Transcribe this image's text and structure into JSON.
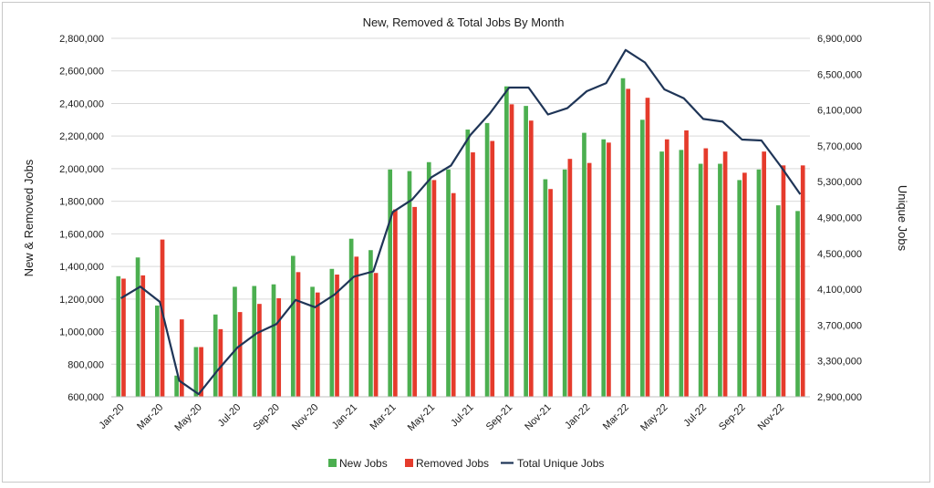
{
  "chart_data": {
    "type": "bar",
    "title": "New, Removed & Total Jobs By Month",
    "ylabel": "New & Removed Jobs",
    "y2label": "Unique Jobs",
    "ylim": [
      600000,
      2800000
    ],
    "y2lim": [
      2900000,
      6900000
    ],
    "yticks": [
      "2,800,000",
      "2,600,000",
      "2,400,000",
      "2,200,000",
      "2,000,000",
      "1,800,000",
      "1,600,000",
      "1,400,000",
      "1,200,000",
      "1,000,000",
      "800,000",
      "600,000"
    ],
    "y2ticks": [
      "6,900,000",
      "6,500,000",
      "6,100,000",
      "5,700,000",
      "5,300,000",
      "4,900,000",
      "4,500,000",
      "4,100,000",
      "3,700,000",
      "3,300,000",
      "2,900,000"
    ],
    "categories": [
      "Jan-20",
      "Feb-20",
      "Mar-20",
      "Apr-20",
      "May-20",
      "Jun-20",
      "Jul-20",
      "Aug-20",
      "Sep-20",
      "Oct-20",
      "Nov-20",
      "Dec-20",
      "Jan-21",
      "Feb-21",
      "Mar-21",
      "Apr-21",
      "May-21",
      "Jun-21",
      "Jul-21",
      "Aug-21",
      "Sep-21",
      "Oct-21",
      "Nov-21",
      "Dec-21",
      "Jan-22",
      "Feb-22",
      "Mar-22",
      "Apr-22",
      "May-22",
      "Jun-22",
      "Jul-22",
      "Aug-22",
      "Sep-22",
      "Oct-22",
      "Nov-22",
      "Dec-22"
    ],
    "xtick_labels": [
      "Jan-20",
      "Mar-20",
      "May-20",
      "Jul-20",
      "Sep-20",
      "Nov-20",
      "Jan-21",
      "Mar-21",
      "May-21",
      "Jul-21",
      "Sep-21",
      "Nov-21",
      "Jan-22",
      "Mar-22",
      "May-22",
      "Jul-22",
      "Sep-22",
      "Nov-22"
    ],
    "legend_position": "bottom",
    "grid": true,
    "series": [
      {
        "name": "New Jobs",
        "axis": "left",
        "kind": "bar",
        "color": "#4caf50",
        "values": [
          1340000,
          1455000,
          1160000,
          730000,
          905000,
          1105000,
          1275000,
          1280000,
          1290000,
          1465000,
          1275000,
          1385000,
          1570000,
          1500000,
          1995000,
          1985000,
          2040000,
          1995000,
          2240000,
          2280000,
          2505000,
          2385000,
          1935000,
          1995000,
          2220000,
          2180000,
          2555000,
          2300000,
          2105000,
          2115000,
          2030000,
          2030000,
          1930000,
          1995000,
          1775000,
          1740000
        ]
      },
      {
        "name": "Removed Jobs",
        "axis": "left",
        "kind": "bar",
        "color": "#e53b2c",
        "values": [
          1325000,
          1345000,
          1565000,
          1075000,
          905000,
          1015000,
          1120000,
          1170000,
          1205000,
          1365000,
          1240000,
          1350000,
          1460000,
          1360000,
          1750000,
          1765000,
          1930000,
          1850000,
          2100000,
          2170000,
          2395000,
          2295000,
          1875000,
          2060000,
          2035000,
          2160000,
          2490000,
          2435000,
          2180000,
          2235000,
          2125000,
          2105000,
          1975000,
          2105000,
          2020000,
          2020000
        ]
      },
      {
        "name": "Total Unique Jobs",
        "axis": "right",
        "kind": "line",
        "color": "#1f3557",
        "values": [
          4000000,
          4130000,
          3960000,
          3080000,
          2930000,
          3200000,
          3450000,
          3610000,
          3710000,
          3980000,
          3900000,
          4040000,
          4240000,
          4300000,
          4960000,
          5100000,
          5350000,
          5480000,
          5820000,
          6060000,
          6350000,
          6350000,
          6050000,
          6120000,
          6310000,
          6400000,
          6770000,
          6630000,
          6330000,
          6230000,
          6000000,
          5970000,
          5770000,
          5760000,
          5470000,
          5160000
        ]
      }
    ]
  }
}
